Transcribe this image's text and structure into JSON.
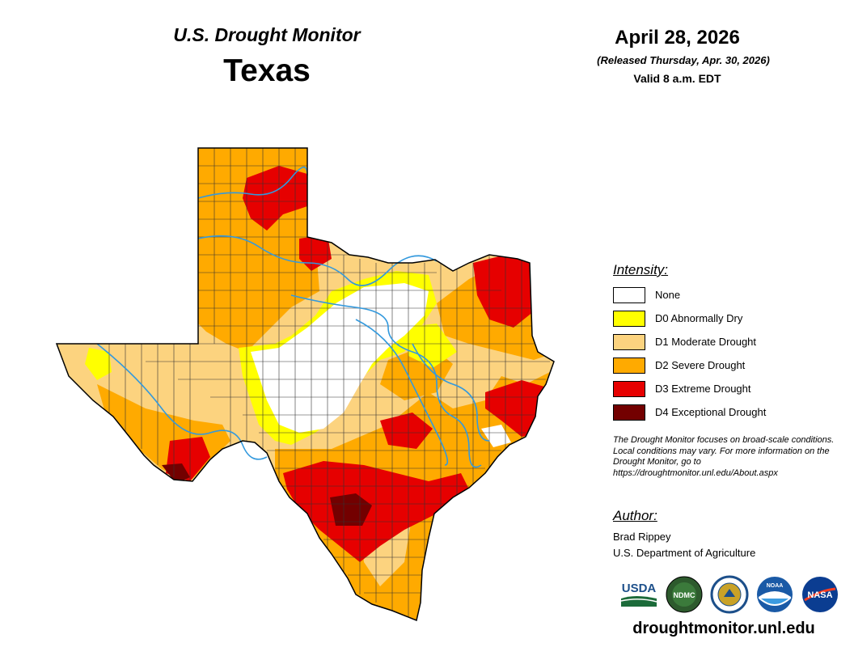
{
  "header": {
    "subtitle": "U.S. Drought Monitor",
    "state": "Texas",
    "date": "April 28, 2026",
    "released": "(Released Thursday, Apr. 30, 2026)",
    "valid": "Valid 8 a.m. EDT"
  },
  "legend": {
    "title": "Intensity:",
    "items": [
      {
        "label": "None",
        "color": "#ffffff"
      },
      {
        "label": "D0 Abnormally Dry",
        "color": "#ffff00"
      },
      {
        "label": "D1 Moderate Drought",
        "color": "#fcd37f"
      },
      {
        "label": "D2 Severe Drought",
        "color": "#ffaa00"
      },
      {
        "label": "D3 Extreme Drought",
        "color": "#e60000"
      },
      {
        "label": "D4 Exceptional Drought",
        "color": "#730000"
      }
    ]
  },
  "disclaimer": "The Drought Monitor focuses on broad-scale conditions. Local conditions may vary. For more information on the Drought Monitor, go to https://droughtmonitor.unl.edu/About.aspx",
  "author": {
    "heading": "Author:",
    "name": "Brad Rippey",
    "organization": "U.S. Department of Agriculture"
  },
  "logos": {
    "usda": "USDA",
    "ndmc": "NDMC",
    "noaa": "NOAA",
    "nasa": "NASA",
    "doc_icon": "commerce-seal-icon"
  },
  "site_url": "droughtmonitor.unl.edu",
  "colors": {
    "river": "#3399dd",
    "border": "#000000",
    "county_line": "#333333"
  }
}
